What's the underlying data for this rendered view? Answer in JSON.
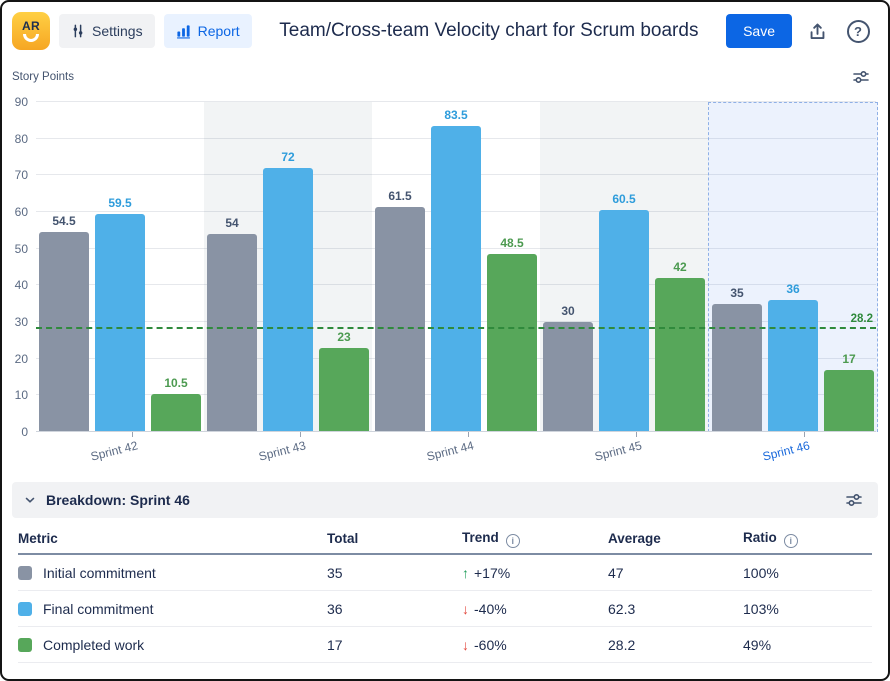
{
  "header": {
    "logo_text": "AR",
    "settings_label": "Settings",
    "report_label": "Report",
    "title": "Team/Cross-team Velocity chart for Scrum boards",
    "save_label": "Save",
    "help_label": "?"
  },
  "colors": {
    "accent": "#0C66E4"
  },
  "chart": {
    "axis_title": "Story Points"
  },
  "chart_data": {
    "type": "bar",
    "title": "Team/Cross-team Velocity chart for Scrum boards",
    "ylabel": "Story Points",
    "ylim": [
      0,
      90
    ],
    "y_ticks": [
      0,
      10,
      20,
      30,
      40,
      50,
      60,
      70,
      80,
      90
    ],
    "grid": true,
    "legend_position": "none",
    "categories": [
      "Sprint 42",
      "Sprint 43",
      "Sprint 44",
      "Sprint 45",
      "Sprint 46"
    ],
    "series": [
      {
        "name": "Initial commitment",
        "color": "#8993A4",
        "label_color": "#44546F",
        "values": [
          54.5,
          54,
          61.5,
          30,
          35
        ]
      },
      {
        "name": "Final commitment",
        "color": "#4FB0E8",
        "label_color": "#2E9CDB",
        "values": [
          59.5,
          72,
          83.5,
          60.5,
          36
        ]
      },
      {
        "name": "Completed work",
        "color": "#57A75A",
        "label_color": "#4C9A50",
        "values": [
          10.5,
          23,
          48.5,
          42,
          17
        ]
      }
    ],
    "average_line": {
      "value": 28.2,
      "label": "28.2",
      "color": "#2F8A3C"
    },
    "highlighted_category": "Sprint 46",
    "shaded_categories": [
      "Sprint 43",
      "Sprint 45"
    ]
  },
  "breakdown": {
    "title": "Breakdown: Sprint 46",
    "table": {
      "headers": [
        {
          "label": "Metric",
          "info": false
        },
        {
          "label": "Total",
          "info": false
        },
        {
          "label": "Trend",
          "info": true
        },
        {
          "label": "Average",
          "info": false
        },
        {
          "label": "Ratio",
          "info": true
        }
      ],
      "rows": [
        {
          "metric": "Initial commitment",
          "color": "#8993A4",
          "total": "35",
          "trend": "+17%",
          "trend_dir": "up",
          "average": "47",
          "ratio": "100%"
        },
        {
          "metric": "Final commitment",
          "color": "#4FB0E8",
          "total": "36",
          "trend": "-40%",
          "trend_dir": "down",
          "average": "62.3",
          "ratio": "103%"
        },
        {
          "metric": "Completed work",
          "color": "#57A75A",
          "total": "17",
          "trend": "-60%",
          "trend_dir": "down",
          "average": "28.2",
          "ratio": "49%"
        }
      ]
    }
  },
  "glyphs": {
    "trend_up": "↑",
    "trend_down": "↓"
  }
}
